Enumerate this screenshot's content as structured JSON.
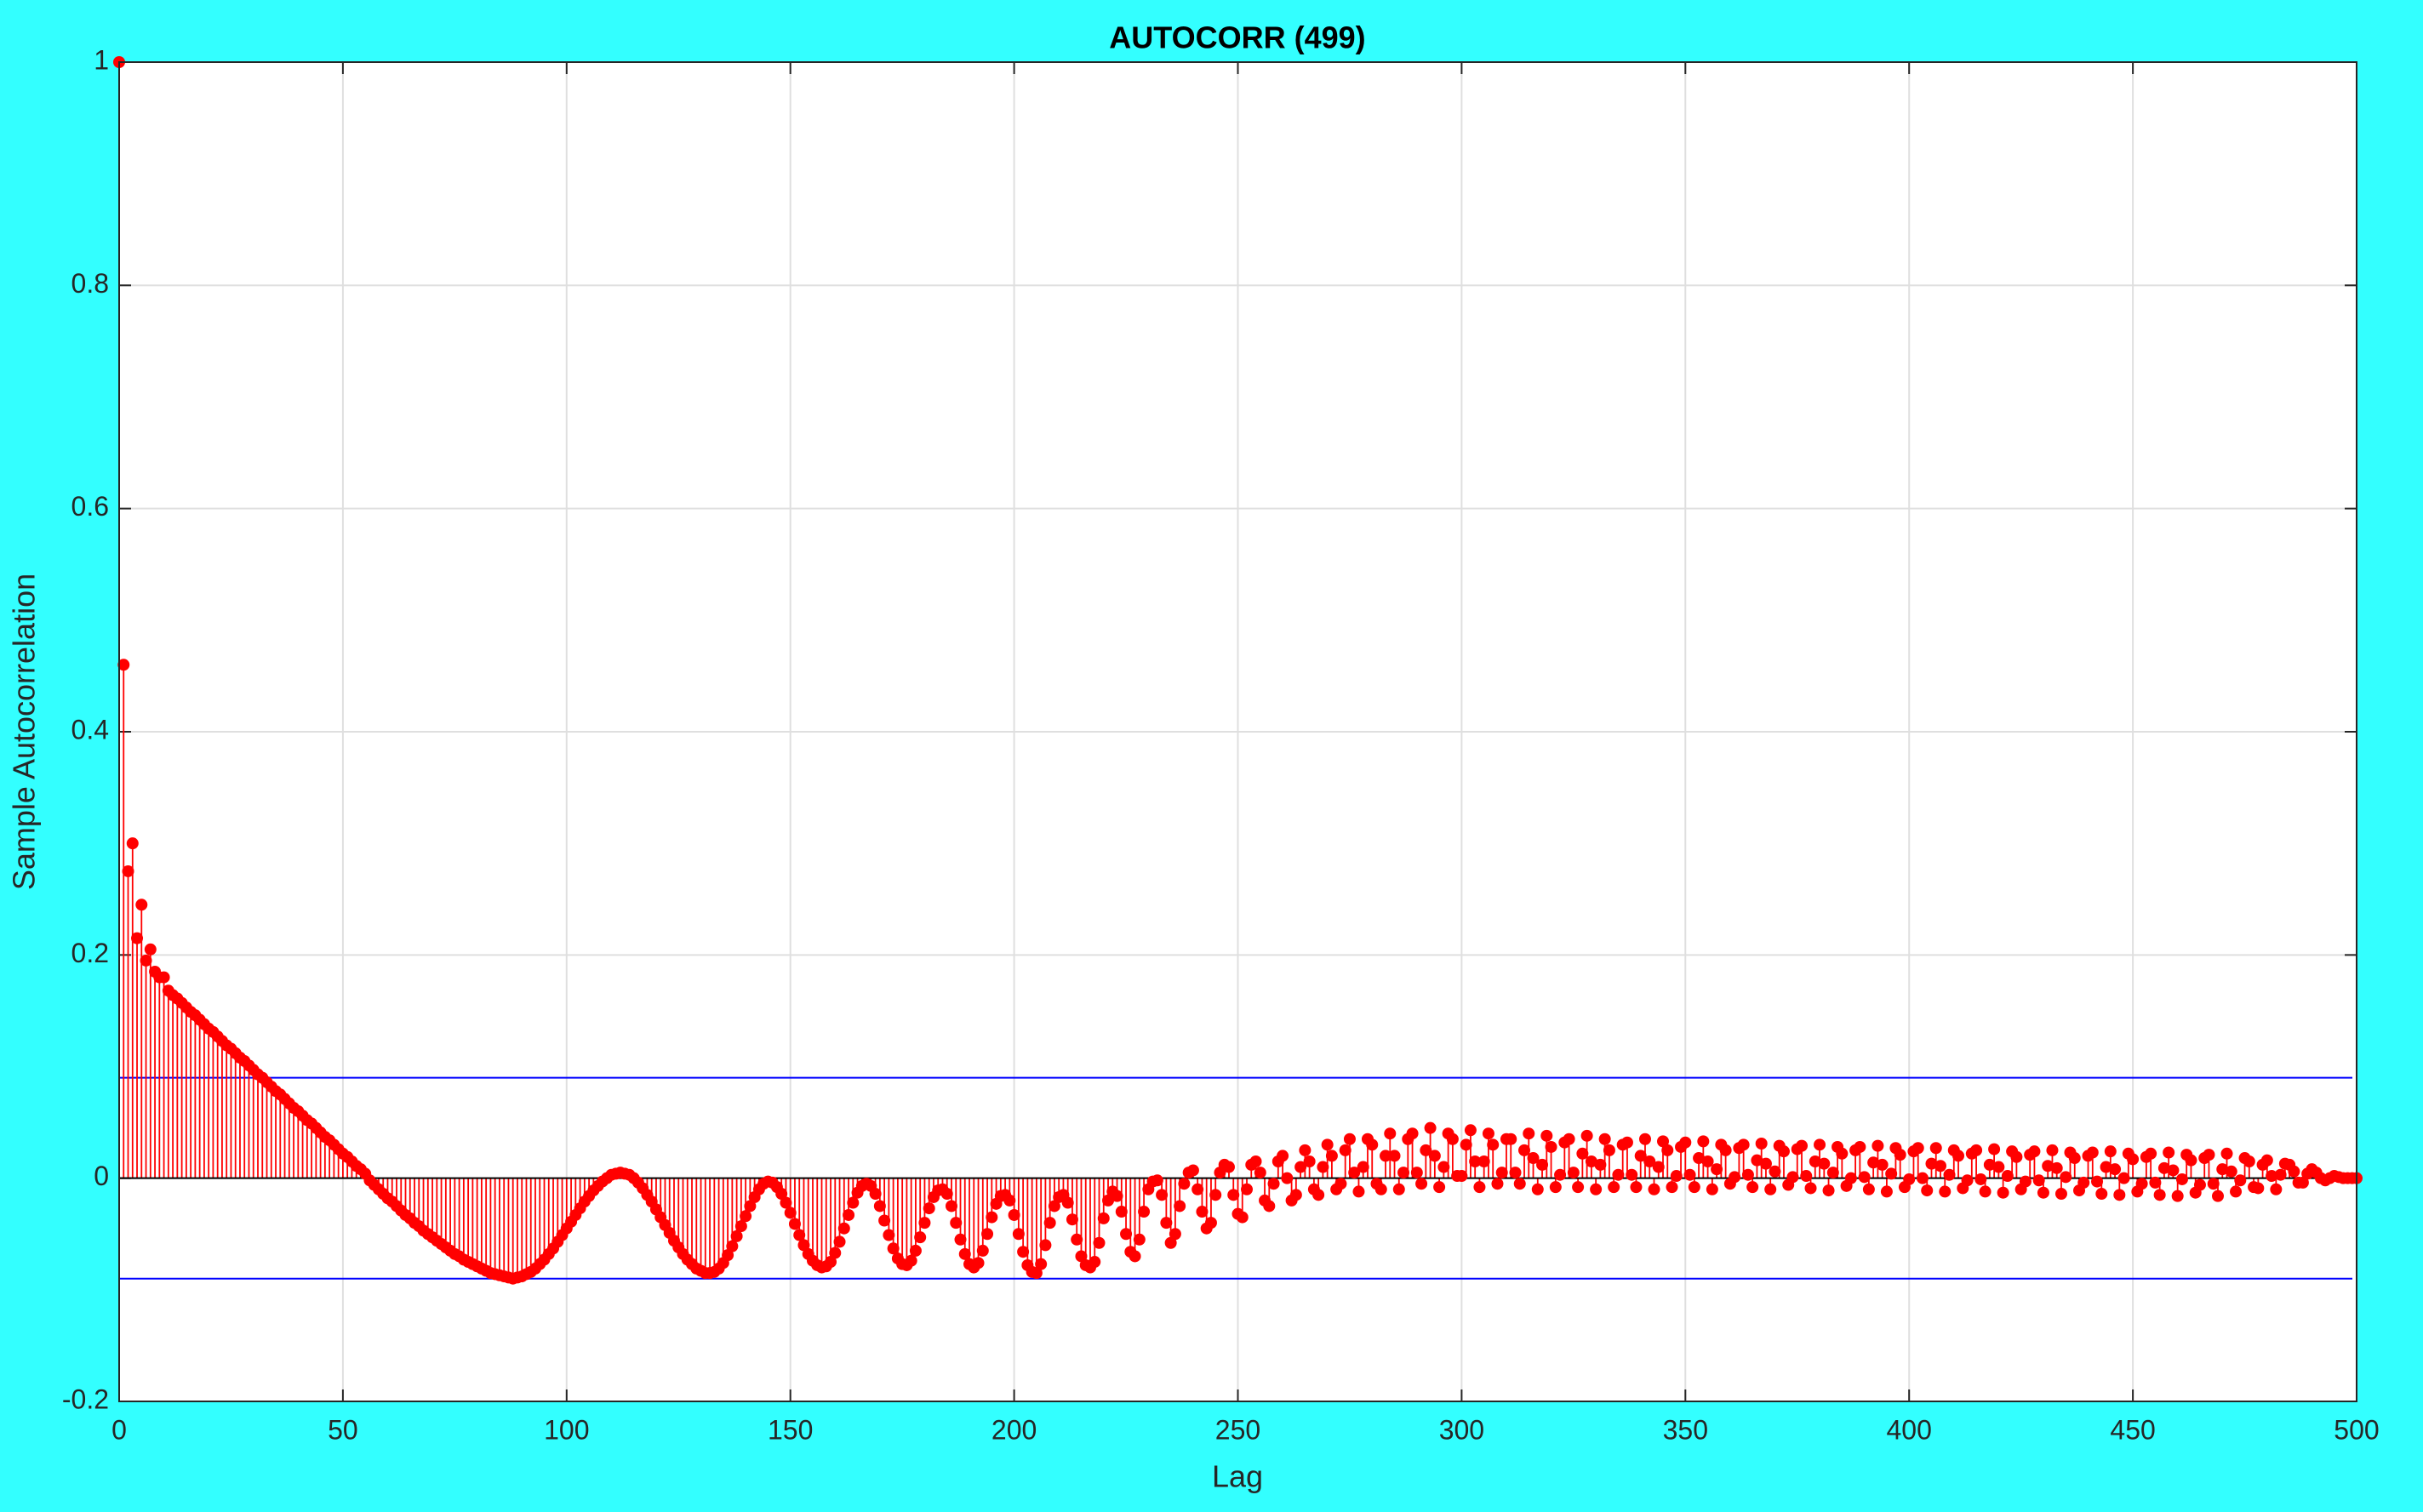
{
  "chart_data": {
    "type": "stem",
    "title": "AUTOCORR (499)",
    "x_label": "Lag",
    "y_label": "Sample Autocorrelation",
    "xlim": [
      0,
      500
    ],
    "xticks": [
      0,
      50,
      100,
      150,
      200,
      250,
      300,
      350,
      400,
      450,
      500
    ],
    "ylim": [
      -0.2,
      1
    ],
    "yticks": [
      -0.2,
      0,
      0.2,
      0.4,
      0.6,
      0.8,
      1
    ],
    "grid": true,
    "confidence_bounds": [
      0.09,
      -0.09
    ],
    "bounds_color": "#0000ff",
    "series": [
      {
        "color": "#ff0000",
        "x": [
          0,
          1,
          2,
          3,
          4,
          5,
          6,
          7,
          8,
          9,
          10,
          11,
          12,
          13,
          14,
          15,
          16,
          17,
          18,
          19,
          20,
          21,
          22,
          23,
          24,
          25,
          26,
          27,
          28,
          29,
          30,
          31,
          32,
          33,
          34,
          35,
          36,
          37,
          38,
          39,
          40,
          41,
          42,
          43,
          44,
          45,
          46,
          47,
          48,
          49,
          50,
          51,
          52,
          53,
          54,
          55,
          56,
          57,
          58,
          59,
          60,
          61,
          62,
          63,
          64,
          65,
          66,
          67,
          68,
          69,
          70,
          71,
          72,
          73,
          74,
          75,
          76,
          77,
          78,
          79,
          80,
          81,
          82,
          83,
          84,
          85,
          86,
          87,
          88,
          89,
          90,
          91,
          92,
          93,
          94,
          95,
          96,
          97,
          98,
          99,
          100,
          101,
          102,
          103,
          104,
          105,
          106,
          107,
          108,
          109,
          110,
          111,
          112,
          113,
          114,
          115,
          116,
          117,
          118,
          119,
          120,
          121,
          122,
          123,
          124,
          125,
          126,
          127,
          128,
          129,
          130,
          131,
          132,
          133,
          134,
          135,
          136,
          137,
          138,
          139,
          140,
          141,
          142,
          143,
          144,
          145,
          146,
          147,
          148,
          149,
          150,
          151,
          152,
          153,
          154,
          155,
          156,
          157,
          158,
          159,
          160,
          161,
          162,
          163,
          164,
          165,
          166,
          167,
          168,
          169,
          170,
          171,
          172,
          173,
          174,
          175,
          176,
          177,
          178,
          179,
          180,
          181,
          182,
          183,
          184,
          185,
          186,
          187,
          188,
          189,
          190,
          191,
          192,
          193,
          194,
          195,
          196,
          197,
          198,
          199,
          200,
          201,
          202,
          203,
          204,
          205,
          206,
          207,
          208,
          209,
          210,
          211,
          212,
          213,
          214,
          215,
          216,
          217,
          218,
          219,
          220,
          221,
          222,
          223,
          224,
          225,
          226,
          227,
          228,
          229,
          230,
          231,
          232,
          233,
          234,
          235,
          236,
          237,
          238,
          239,
          240,
          241,
          242,
          243,
          244,
          245,
          246,
          247,
          248,
          249,
          250,
          251,
          252,
          253,
          254,
          255,
          256,
          257,
          258,
          259,
          260,
          261,
          262,
          263,
          264,
          265,
          266,
          267,
          268,
          269,
          270,
          271,
          272,
          273,
          274,
          275,
          276,
          277,
          278,
          279,
          280,
          281,
          282,
          283,
          284,
          285,
          286,
          287,
          288,
          289,
          290,
          291,
          292,
          293,
          294,
          295,
          296,
          297,
          298,
          299,
          300,
          301,
          302,
          303,
          304,
          305,
          306,
          307,
          308,
          309,
          310,
          311,
          312,
          313,
          314,
          315,
          316,
          317,
          318,
          319,
          320,
          321,
          322,
          323,
          324,
          325,
          326,
          327,
          328,
          329,
          330,
          331,
          332,
          333,
          334,
          335,
          336,
          337,
          338,
          339,
          340,
          341,
          342,
          343,
          344,
          345,
          346,
          347,
          348,
          349,
          350,
          351,
          352,
          353,
          354,
          355,
          356,
          357,
          358,
          359,
          360,
          361,
          362,
          363,
          364,
          365,
          366,
          367,
          368,
          369,
          370,
          371,
          372,
          373,
          374,
          375,
          376,
          377,
          378,
          379,
          380,
          381,
          382,
          383,
          384,
          385,
          386,
          387,
          388,
          389,
          390,
          391,
          392,
          393,
          394,
          395,
          396,
          397,
          398,
          399,
          400,
          401,
          402,
          403,
          404,
          405,
          406,
          407,
          408,
          409,
          410,
          411,
          412,
          413,
          414,
          415,
          416,
          417,
          418,
          419,
          420,
          421,
          422,
          423,
          424,
          425,
          426,
          427,
          428,
          429,
          430,
          431,
          432,
          433,
          434,
          435,
          436,
          437,
          438,
          439,
          440,
          441,
          442,
          443,
          444,
          445,
          446,
          447,
          448,
          449,
          450,
          451,
          452,
          453,
          454,
          455,
          456,
          457,
          458,
          459,
          460,
          461,
          462,
          463,
          464,
          465,
          466,
          467,
          468,
          469,
          470,
          471,
          472,
          473,
          474,
          475,
          476,
          477,
          478,
          479,
          480,
          481,
          482,
          483,
          484,
          485,
          486,
          487,
          488,
          489,
          490,
          491,
          492,
          493,
          494,
          495,
          496,
          497,
          498,
          499,
          500
        ],
        "values": [
          1,
          0.46,
          0.275,
          0.3,
          0.215,
          0.245,
          0.195,
          0.205,
          0.185,
          0.18,
          0.18,
          0.168,
          0.164,
          0.161,
          0.157,
          0.153,
          0.149,
          0.146,
          0.142,
          0.138,
          0.134,
          0.131,
          0.127,
          0.123,
          0.119,
          0.116,
          0.112,
          0.108,
          0.105,
          0.101,
          0.097,
          0.093,
          0.09,
          0.086,
          0.082,
          0.078,
          0.075,
          0.071,
          0.067,
          0.063,
          0.06,
          0.056,
          0.052,
          0.049,
          0.045,
          0.041,
          0.037,
          0.034,
          0.03,
          0.026,
          0.022,
          0.019,
          0.015,
          0.011,
          0.008,
          0.004,
          -0.002,
          -0.006,
          -0.01,
          -0.014,
          -0.018,
          -0.021,
          -0.025,
          -0.029,
          -0.033,
          -0.036,
          -0.04,
          -0.043,
          -0.047,
          -0.05,
          -0.053,
          -0.056,
          -0.059,
          -0.062,
          -0.065,
          -0.068,
          -0.07,
          -0.073,
          -0.075,
          -0.077,
          -0.079,
          -0.081,
          -0.083,
          -0.085,
          -0.086,
          -0.087,
          -0.088,
          -0.089,
          -0.09,
          -0.089,
          -0.088,
          -0.086,
          -0.084,
          -0.081,
          -0.077,
          -0.073,
          -0.068,
          -0.063,
          -0.057,
          -0.051,
          -0.045,
          -0.039,
          -0.033,
          -0.027,
          -0.021,
          -0.016,
          -0.011,
          -0.007,
          -0.003,
          0,
          0.003,
          0.004,
          0.005,
          0.004,
          0.003,
          0,
          -0.004,
          -0.009,
          -0.015,
          -0.021,
          -0.028,
          -0.035,
          -0.042,
          -0.049,
          -0.056,
          -0.062,
          -0.068,
          -0.073,
          -0.077,
          -0.081,
          -0.083,
          -0.085,
          -0.085,
          -0.084,
          -0.081,
          -0.076,
          -0.069,
          -0.061,
          -0.052,
          -0.043,
          -0.034,
          -0.025,
          -0.017,
          -0.01,
          -0.005,
          -0.003,
          -0.004,
          -0.008,
          -0.014,
          -0.022,
          -0.031,
          -0.041,
          -0.051,
          -0.06,
          -0.068,
          -0.074,
          -0.078,
          -0.08,
          -0.079,
          -0.075,
          -0.067,
          -0.057,
          -0.045,
          -0.033,
          -0.022,
          -0.013,
          -0.007,
          -0.005,
          -0.007,
          -0.014,
          -0.025,
          -0.038,
          -0.051,
          -0.063,
          -0.072,
          -0.077,
          -0.078,
          -0.074,
          -0.065,
          -0.053,
          -0.04,
          -0.027,
          -0.017,
          -0.011,
          -0.01,
          -0.014,
          -0.025,
          -0.04,
          -0.055,
          -0.068,
          -0.077,
          -0.08,
          -0.076,
          -0.065,
          -0.05,
          -0.035,
          -0.023,
          -0.016,
          -0.015,
          -0.02,
          -0.033,
          -0.05,
          -0.066,
          -0.078,
          -0.084,
          -0.085,
          -0.077,
          -0.06,
          -0.04,
          -0.025,
          -0.017,
          -0.015,
          -0.022,
          -0.037,
          -0.055,
          -0.07,
          -0.078,
          -0.08,
          -0.075,
          -0.058,
          -0.036,
          -0.02,
          -0.012,
          -0.016,
          -0.03,
          -0.05,
          -0.066,
          -0.07,
          -0.055,
          -0.03,
          -0.01,
          -0.003,
          -0.002,
          -0.015,
          -0.04,
          -0.058,
          -0.05,
          -0.025,
          -0.005,
          0.005,
          0.007,
          -0.01,
          -0.03,
          -0.045,
          -0.04,
          -0.015,
          0.005,
          0.012,
          0.01,
          -0.015,
          -0.032,
          -0.035,
          -0.01,
          0.012,
          0.015,
          0.005,
          -0.02,
          -0.025,
          -0.005,
          0.015,
          0.02,
          0,
          -0.02,
          -0.015,
          0.01,
          0.025,
          0.015,
          -0.01,
          -0.015,
          0.01,
          0.03,
          0.02,
          -0.01,
          -0.005,
          0.025,
          0.035,
          0.005,
          -0.012,
          0.01,
          0.035,
          0.03,
          -0.005,
          -0.01,
          0.02,
          0.04,
          0.02,
          -0.01,
          0.005,
          0.035,
          0.04,
          0.005,
          -0.005,
          0.025,
          0.045,
          0.02,
          -0.008,
          0.01,
          0.04,
          0.035,
          0.002,
          0.002,
          0.03,
          0.043,
          0.015,
          -0.008,
          0.015,
          0.04,
          0.03,
          -0.005,
          0.005,
          0.035,
          0.035,
          0.005,
          -0.005,
          0.025,
          0.04,
          0.018,
          -0.01,
          0.012,
          0.038,
          0.028,
          -0.008,
          0.003,
          0.032,
          0.035,
          0.005,
          -0.008,
          0.022,
          0.038,
          0.015,
          -0.01,
          0.012,
          0.035,
          0.025,
          -0.008,
          0.003,
          0.03,
          0.032,
          0.003,
          -0.008,
          0.02,
          0.035,
          0.015,
          -0.01,
          0.01,
          0.033,
          0.025,
          -0.008,
          0.002,
          0.028,
          0.032,
          0.003,
          -0.008,
          0.018,
          0.033,
          0.015,
          -0.01,
          0.008,
          0.03,
          0.025,
          -0.005,
          0.001,
          0.027,
          0.03,
          0.003,
          -0.008,
          0.016,
          0.031,
          0.013,
          -0.01,
          0.006,
          0.029,
          0.024,
          -0.006,
          0.001,
          0.026,
          0.029,
          0.002,
          -0.009,
          0.015,
          0.03,
          0.013,
          -0.011,
          0.005,
          0.028,
          0.022,
          -0.007,
          0,
          0.025,
          0.028,
          0.001,
          -0.01,
          0.014,
          0.029,
          0.012,
          -0.012,
          0.004,
          0.027,
          0.021,
          -0.008,
          -0.001,
          0.024,
          0.027,
          0,
          -0.011,
          0.013,
          0.027,
          0.011,
          -0.012,
          0.003,
          0.025,
          0.02,
          -0.009,
          -0.002,
          0.022,
          0.025,
          -0.001,
          -0.012,
          0.012,
          0.026,
          0.01,
          -0.013,
          0.002,
          0.024,
          0.019,
          -0.01,
          -0.003,
          0.021,
          0.024,
          -0.002,
          -0.013,
          0.011,
          0.025,
          0.009,
          -0.014,
          0.001,
          0.023,
          0.018,
          -0.011,
          -0.004,
          0.02,
          0.023,
          -0.003,
          -0.014,
          0.01,
          0.024,
          0.008,
          -0.015,
          0,
          0.022,
          0.017,
          -0.012,
          -0.005,
          0.019,
          0.022,
          -0.004,
          -0.015,
          0.009,
          0.023,
          0.007,
          -0.016,
          -0.001,
          0.021,
          0.016,
          -0.013,
          -0.006,
          0.018,
          0.021,
          -0.005,
          -0.016,
          0.008,
          0.022,
          0.006,
          -0.012,
          -0.002,
          0.018,
          0.015,
          -0.008,
          -0.009,
          0.012,
          0.016,
          0.002,
          -0.01,
          0.003,
          0.013,
          0.012,
          0.006,
          -0.004,
          -0.004,
          0.004,
          0.008,
          0.005,
          0,
          -0.002,
          0,
          0.002,
          0.001,
          0,
          0,
          0,
          0
        ]
      }
    ]
  }
}
